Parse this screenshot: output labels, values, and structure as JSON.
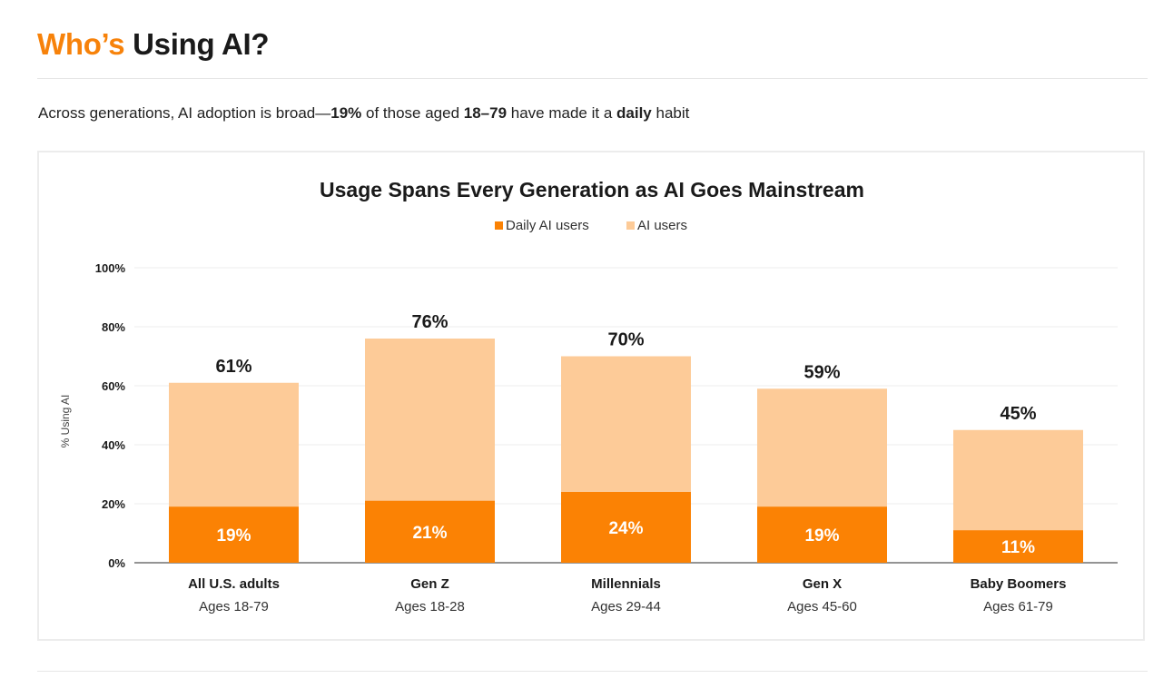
{
  "header": {
    "title_accent": "Who’s",
    "title_rest": "Using AI?"
  },
  "subtitle": {
    "part1": "Across generations, AI adoption is broad—",
    "bold1": "19%",
    "part2": " of those aged ",
    "bold2": "18–79",
    "part3": " have made it a ",
    "bold3": "daily",
    "part4": " habit"
  },
  "colors": {
    "accent": "#f7820a",
    "daily": "#fb8204",
    "ai_users": "#fdcb98",
    "grid": "#eeeeee",
    "baseline": "#555555"
  },
  "chart_data": {
    "type": "bar",
    "stacked": true,
    "title": "Usage Spans Every Generation as AI Goes Mainstream",
    "ylabel": "% Using AI",
    "xlabel": "",
    "ylim": [
      0,
      100
    ],
    "yticks": [
      0,
      20,
      40,
      60,
      80,
      100
    ],
    "ytick_labels": [
      "0%",
      "20%",
      "40%",
      "60%",
      "80%",
      "100%"
    ],
    "grid": true,
    "legend_position": "top-center",
    "categories": [
      "All U.S. adults",
      "Gen Z",
      "Millennials",
      "Gen X",
      "Baby Boomers"
    ],
    "category_sublabels": [
      "Ages 18-79",
      "Ages 18-28",
      "Ages 29-44",
      "Ages 45-60",
      "Ages 61-79"
    ],
    "series": [
      {
        "name": "Daily AI users",
        "values": [
          19,
          21,
          24,
          19,
          11
        ],
        "labels": [
          "19%",
          "21%",
          "24%",
          "19%",
          "11%"
        ]
      },
      {
        "name": "AI users",
        "values": [
          61,
          76,
          70,
          59,
          45
        ],
        "labels": [
          "61%",
          "76%",
          "70%",
          "59%",
          "45%"
        ]
      }
    ]
  }
}
